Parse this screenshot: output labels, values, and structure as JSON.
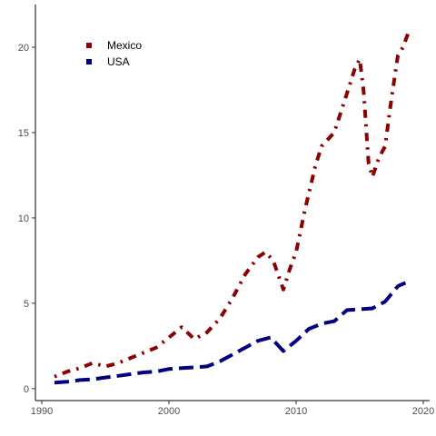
{
  "chart_data": {
    "type": "line",
    "title": "",
    "xlabel": "",
    "ylabel": "",
    "xlim": [
      1989.5,
      2020.5
    ],
    "ylim": [
      -0.7,
      22.5
    ],
    "xticks": [
      1990,
      2000,
      2010,
      2020
    ],
    "yticks": [
      0,
      5,
      10,
      15,
      20
    ],
    "grid": false,
    "legend_position": "top-left",
    "series": [
      {
        "name": "Mexico",
        "color": "#8b0000",
        "dash": "dotdash",
        "points": [
          [
            1991,
            0.7
          ],
          [
            1992,
            1.0
          ],
          [
            1993,
            1.2
          ],
          [
            1994,
            1.5
          ],
          [
            1995,
            1.3
          ],
          [
            1996,
            1.5
          ],
          [
            1997,
            1.8
          ],
          [
            1998,
            2.1
          ],
          [
            1999,
            2.4
          ],
          [
            2000,
            3.0
          ],
          [
            2001,
            3.6
          ],
          [
            2002,
            2.9
          ],
          [
            2003,
            3.3
          ],
          [
            2004,
            4.1
          ],
          [
            2005,
            5.3
          ],
          [
            2006,
            6.7
          ],
          [
            2007,
            7.7
          ],
          [
            2007.6,
            8.0
          ],
          [
            2008.2,
            7.5
          ],
          [
            2009,
            5.8
          ],
          [
            2009.5,
            7.0
          ],
          [
            2010,
            8.0
          ],
          [
            2010.7,
            10.5
          ],
          [
            2011.5,
            13.0
          ],
          [
            2012,
            14.2
          ],
          [
            2013,
            15.0
          ],
          [
            2014,
            17.3
          ],
          [
            2014.6,
            18.7
          ],
          [
            2015,
            19.3
          ],
          [
            2015.3,
            17.5
          ],
          [
            2015.7,
            13.2
          ],
          [
            2016,
            12.4
          ],
          [
            2016.5,
            13.5
          ],
          [
            2017,
            14.2
          ],
          [
            2017.5,
            17.0
          ],
          [
            2018,
            19.5
          ],
          [
            2018.4,
            20.0
          ],
          [
            2018.9,
            21.0
          ]
        ]
      },
      {
        "name": "USA",
        "color": "#000080",
        "dash": "dashed",
        "points": [
          [
            1991,
            0.35
          ],
          [
            1992,
            0.4
          ],
          [
            1993,
            0.5
          ],
          [
            1994,
            0.55
          ],
          [
            1995,
            0.65
          ],
          [
            1996,
            0.75
          ],
          [
            1997,
            0.85
          ],
          [
            1998,
            0.95
          ],
          [
            1999,
            1.0
          ],
          [
            2000,
            1.15
          ],
          [
            2001,
            1.2
          ],
          [
            2002,
            1.25
          ],
          [
            2003,
            1.3
          ],
          [
            2004,
            1.6
          ],
          [
            2005,
            2.0
          ],
          [
            2006,
            2.4
          ],
          [
            2007,
            2.8
          ],
          [
            2008,
            3.0
          ],
          [
            2009,
            2.2
          ],
          [
            2010,
            2.8
          ],
          [
            2011,
            3.5
          ],
          [
            2012,
            3.8
          ],
          [
            2013,
            3.95
          ],
          [
            2014,
            4.6
          ],
          [
            2015,
            4.65
          ],
          [
            2016,
            4.7
          ],
          [
            2017,
            5.1
          ],
          [
            2018,
            6.0
          ],
          [
            2018.6,
            6.2
          ]
        ]
      }
    ]
  }
}
